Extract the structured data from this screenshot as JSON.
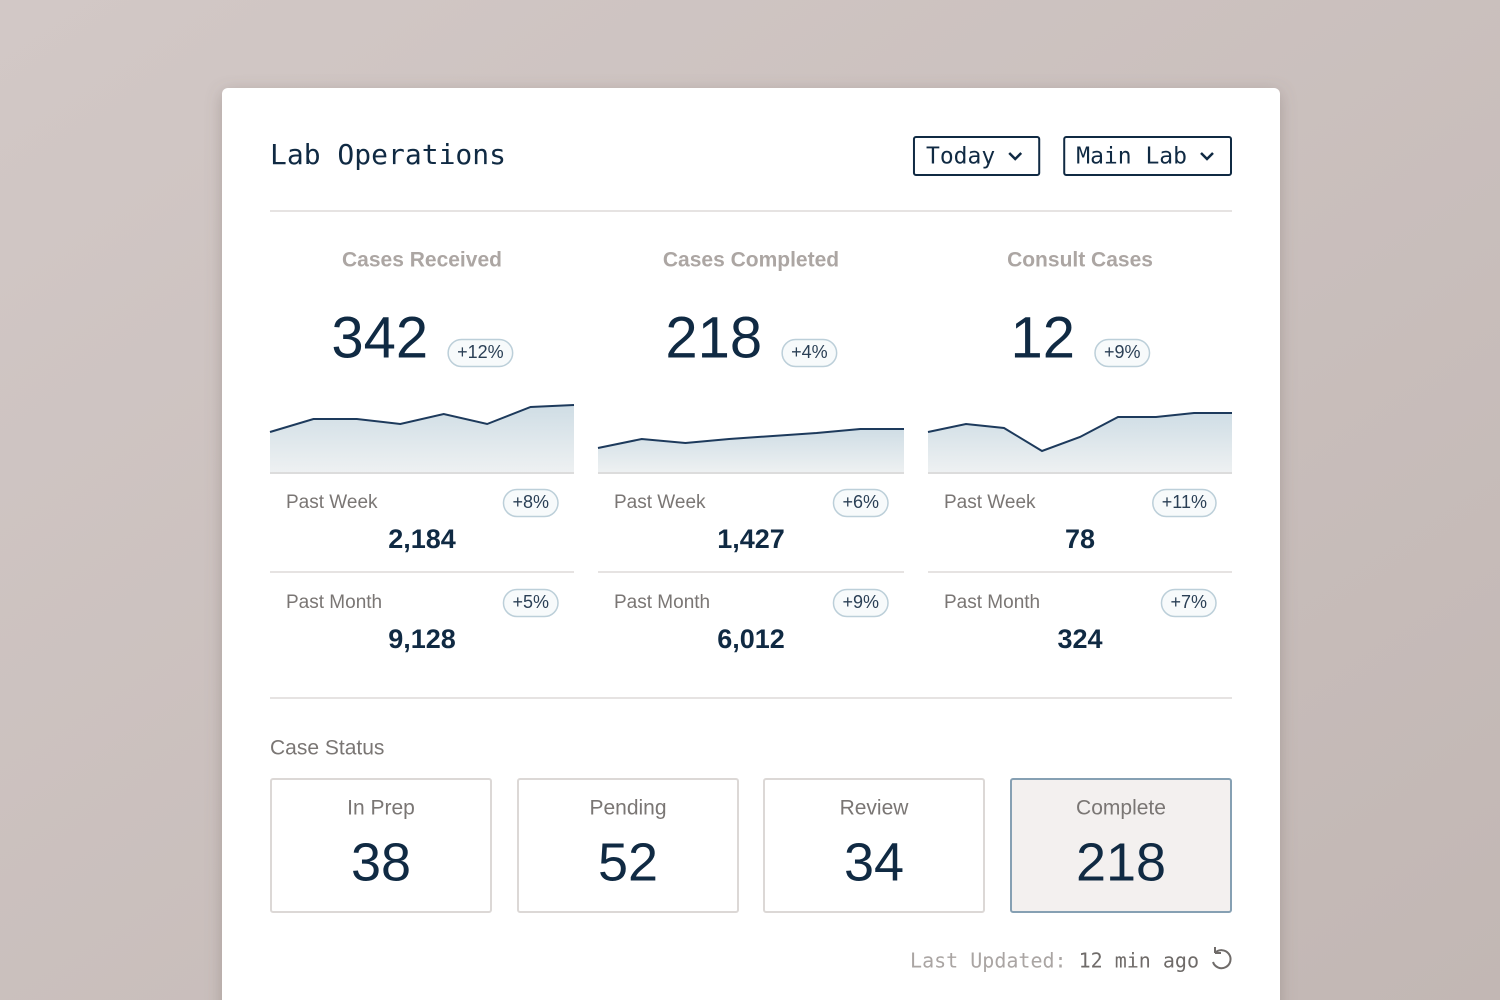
{
  "header": {
    "title": "Lab Operations",
    "filters": [
      "Today",
      "Main Lab"
    ]
  },
  "metrics": [
    {
      "label": "Cases Received",
      "value": 342,
      "change": "+12%",
      "sparkline": [
        41,
        54,
        54,
        49,
        59,
        49,
        66,
        68
      ],
      "rows": [
        {
          "label": "Past Week",
          "value": "2,184",
          "change": "+8%"
        },
        {
          "label": "Past Month",
          "value": "9,128",
          "change": "+5%"
        }
      ]
    },
    {
      "label": "Cases Completed",
      "value": 218,
      "change": "+4%",
      "sparkline": [
        25,
        34,
        30,
        34,
        37,
        40,
        44,
        44
      ],
      "rows": [
        {
          "label": "Past Week",
          "value": "1,427",
          "change": "+6%"
        },
        {
          "label": "Past Month",
          "value": "6,012",
          "change": "+9%"
        }
      ]
    },
    {
      "label": "Consult Cases",
      "value": 12,
      "change": "+9%",
      "sparkline": [
        41,
        49,
        45,
        22,
        36,
        56,
        56,
        60,
        60
      ],
      "rows": [
        {
          "label": "Past Week",
          "value": 78,
          "change": "+11%"
        },
        {
          "label": "Past Month",
          "value": 324,
          "change": "+7%"
        }
      ]
    }
  ],
  "status": {
    "title": "Case Status",
    "items": [
      {
        "label": "In Prep",
        "value": 38
      },
      {
        "label": "Pending",
        "value": 52
      },
      {
        "label": "Review",
        "value": 34
      },
      {
        "label": "Complete",
        "value": 218
      }
    ]
  },
  "footer": {
    "label": "Last Updated:",
    "time": "12 min ago"
  }
}
